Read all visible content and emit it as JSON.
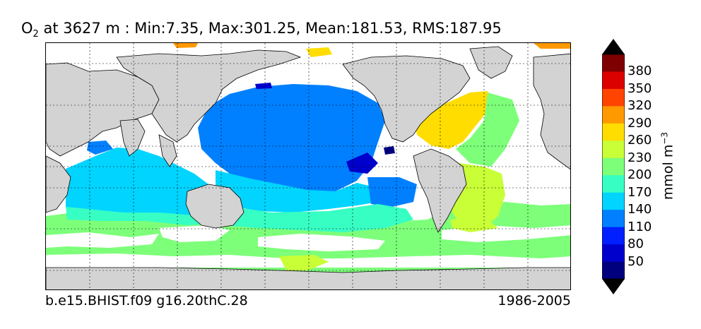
{
  "title": {
    "variable": "O",
    "variable_subscript": "2",
    "text": " at 3627 m : Min:7.35, Max:301.25, Mean:181.53, RMS:187.95"
  },
  "footer": {
    "case": "b.e15.BHIST.f09 g16.20thC.28",
    "period": "1986-2005"
  },
  "colorbar": {
    "units_base": "mmol m",
    "units_exp": "−3",
    "ticks": [
      "380",
      "350",
      "320",
      "290",
      "260",
      "230",
      "200",
      "170",
      "140",
      "110",
      "80",
      "50"
    ],
    "colors": [
      "#7f0000",
      "#dd0000",
      "#ff4400",
      "#ff9900",
      "#ffdd00",
      "#c8ff37",
      "#7dff7a",
      "#37ffc4",
      "#00d4ff",
      "#0080ff",
      "#0020ff",
      "#0000cd",
      "#00007f"
    ]
  },
  "map": {
    "projection": "cylindrical",
    "land_color": "#d3d3d3",
    "no_data_color": "#ffffff",
    "gridlines": "dashed"
  }
}
